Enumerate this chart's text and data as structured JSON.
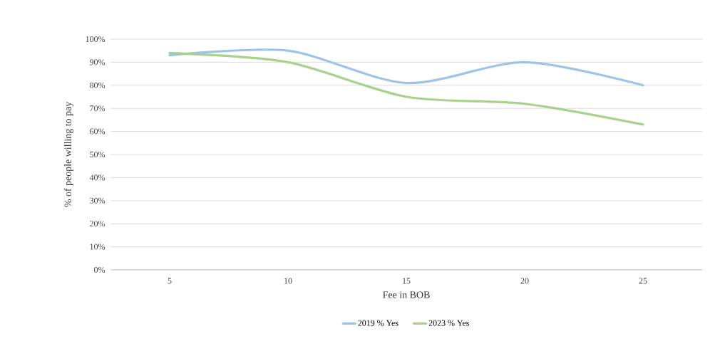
{
  "chart_data": {
    "type": "line",
    "xlabel": "Fee in BOB",
    "ylabel": "% of people willing to pay",
    "categories": [
      "5",
      "10",
      "15",
      "20",
      "25"
    ],
    "series": [
      {
        "name": "2019 % Yes",
        "color": "#9dc3e6",
        "values": [
          93,
          95,
          81,
          90,
          80
        ]
      },
      {
        "name": "2023 % Yes",
        "color": "#a9d18e",
        "values": [
          94,
          90,
          75,
          72,
          63
        ]
      }
    ],
    "ylim": [
      0,
      100
    ],
    "yticks": [
      {
        "value": 0,
        "label": "0%"
      },
      {
        "value": 10,
        "label": "10%"
      },
      {
        "value": 20,
        "label": "20%"
      },
      {
        "value": 30,
        "label": "30%"
      },
      {
        "value": 40,
        "label": "40%"
      },
      {
        "value": 50,
        "label": "50%"
      },
      {
        "value": 60,
        "label": "60%"
      },
      {
        "value": 70,
        "label": "70%"
      },
      {
        "value": 80,
        "label": "80%"
      },
      {
        "value": 90,
        "label": "90%"
      },
      {
        "value": 100,
        "label": "100%"
      }
    ],
    "grid": "y",
    "legend": "bottom",
    "marker": "none",
    "line_style": "solid"
  }
}
